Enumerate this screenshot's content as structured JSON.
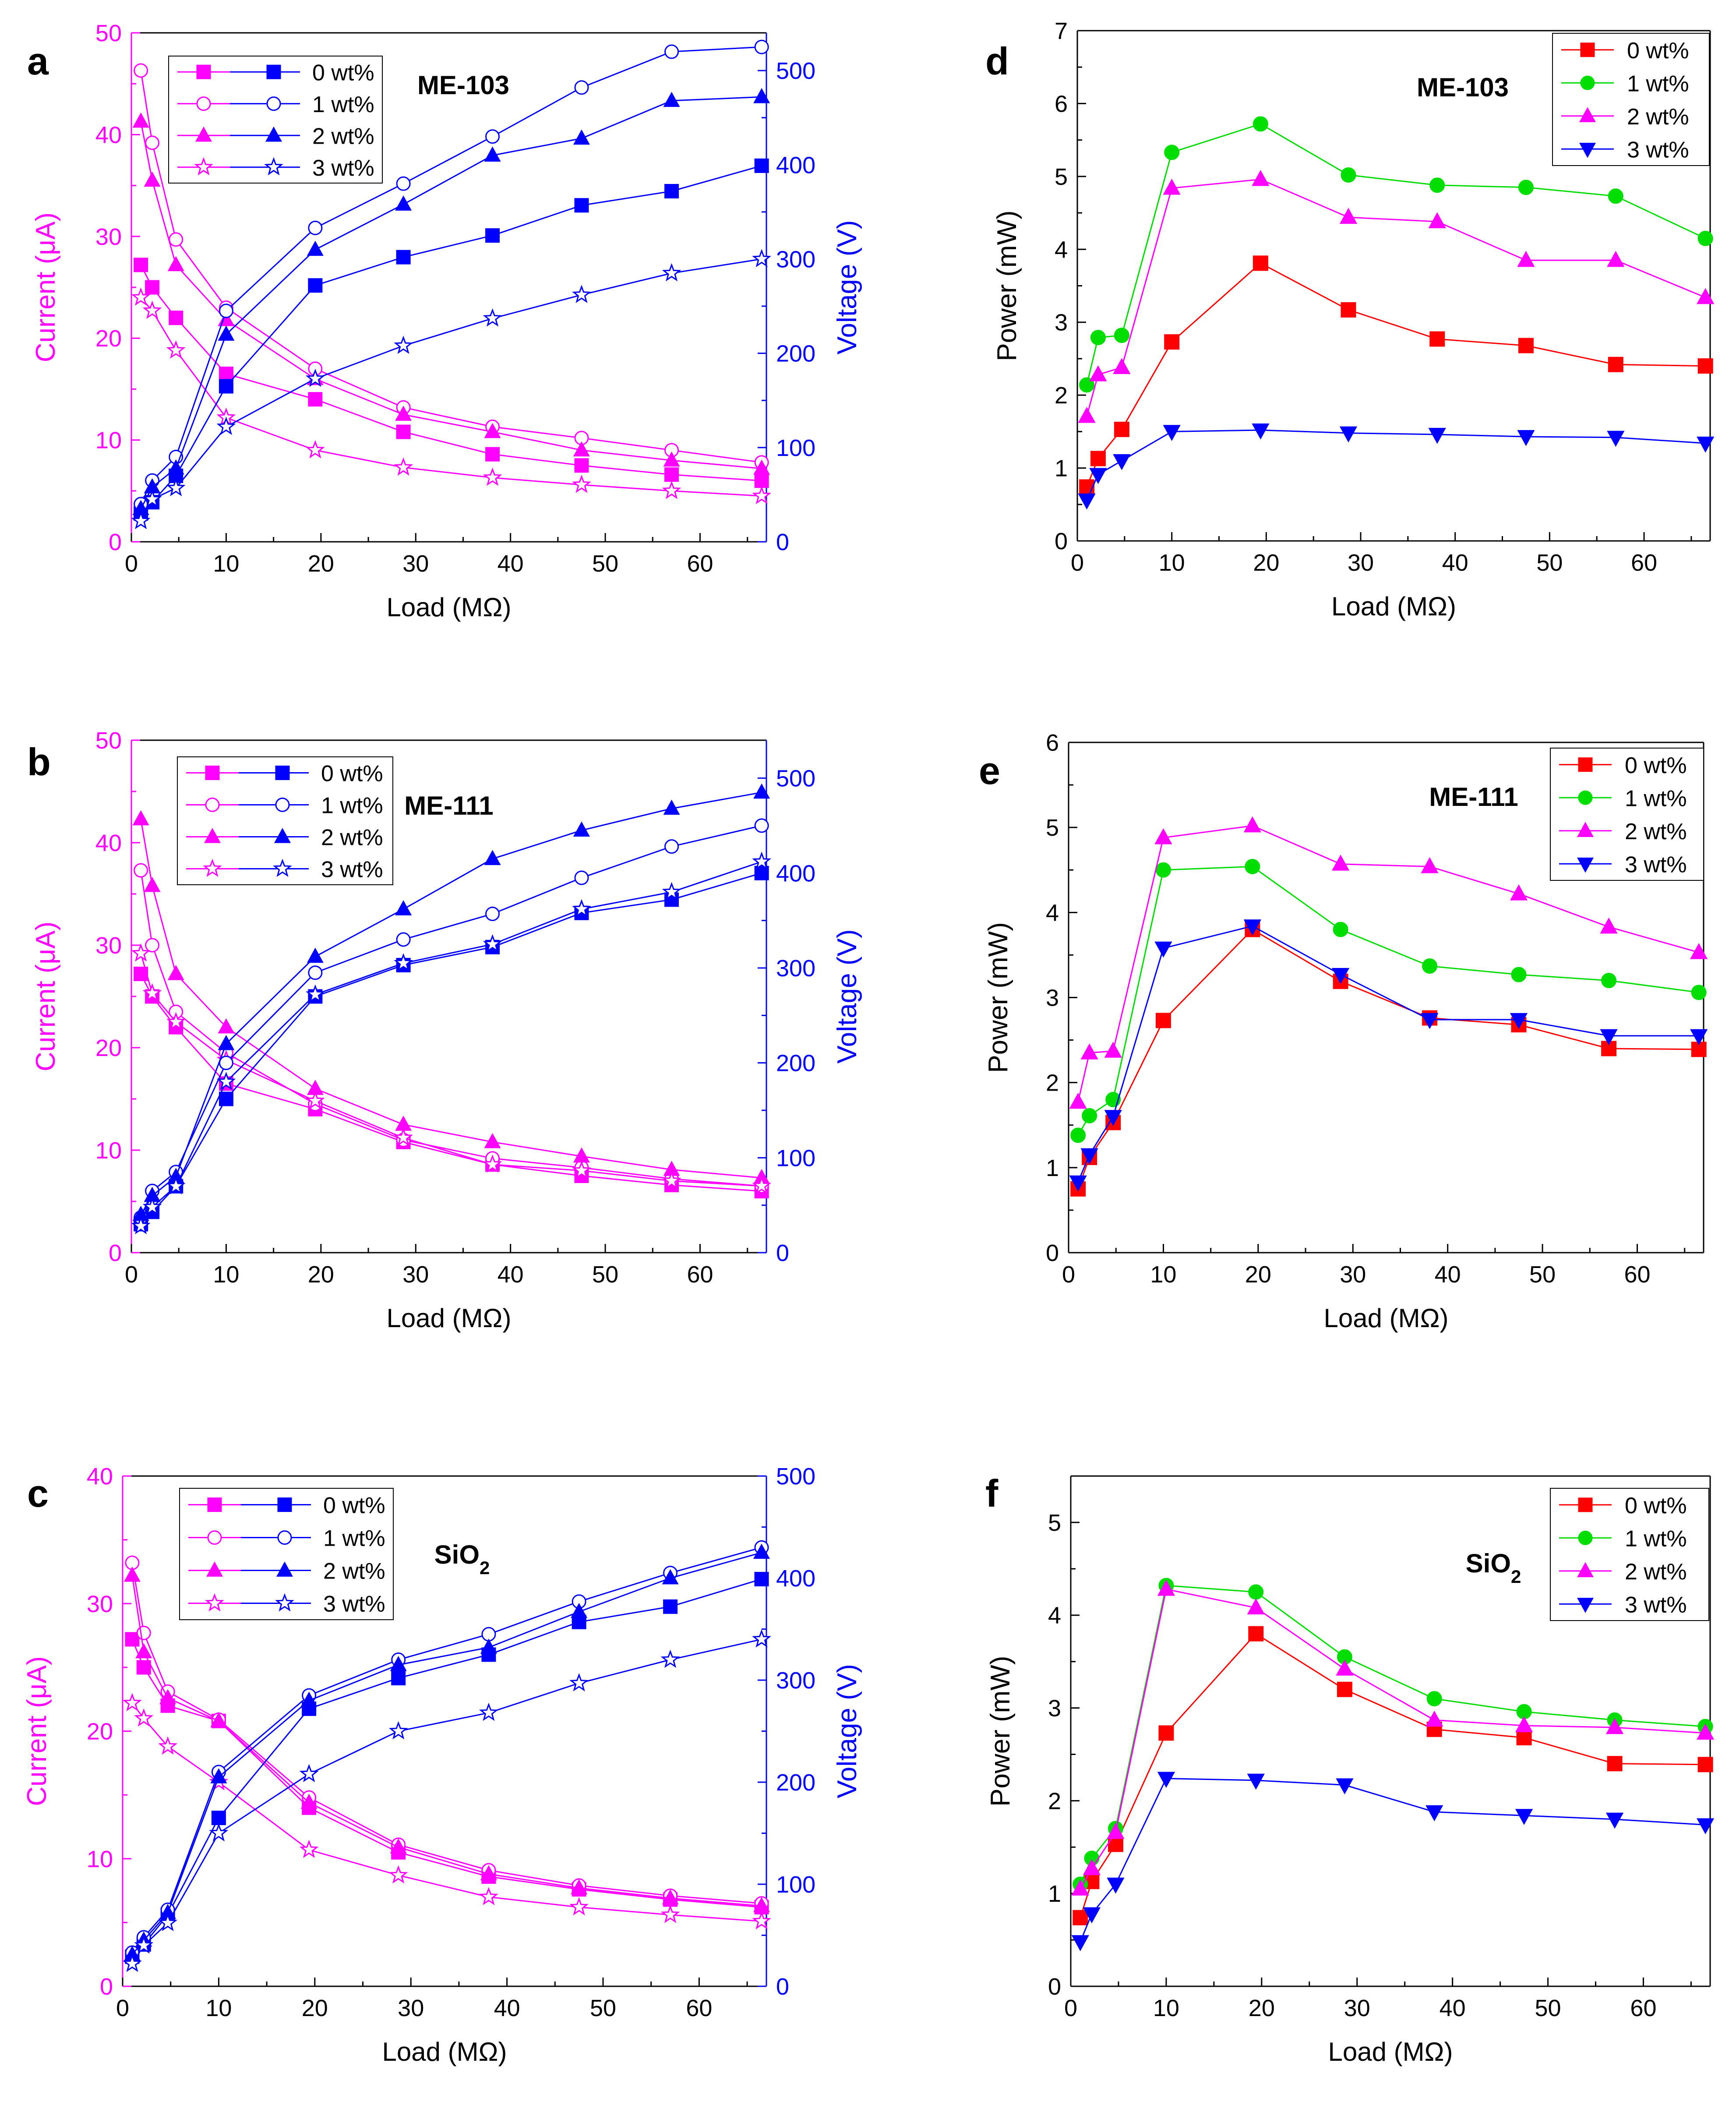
{
  "figure": {
    "x_label": "Load (MΩ)"
  },
  "colors": {
    "current": "#ff00ff",
    "voltage": "#0000ff",
    "power_0": "#ff0000",
    "power_1": "#00dd00",
    "power_2": "#ff00ff",
    "power_3": "#0000ff",
    "axis": "#000000"
  },
  "markers": [
    "square",
    "circle",
    "triangle",
    "star"
  ],
  "chart_data": [
    {
      "type": "line",
      "panel": "a",
      "title": "ME-103",
      "xlabel": "Load (MΩ)",
      "ylabel": "Current (μA)",
      "y2label": "Voltage (V)",
      "xlim": [
        0,
        67
      ],
      "ylim": [
        0,
        50
      ],
      "y2lim": [
        0,
        540
      ],
      "xticks": [
        0,
        10,
        20,
        30,
        40,
        50,
        60
      ],
      "yticks": [
        0,
        10,
        20,
        30,
        40,
        50
      ],
      "y2ticks": [
        0,
        100,
        200,
        300,
        400,
        500
      ],
      "x": [
        1,
        2.2,
        4.7,
        10,
        19.4,
        28.7,
        38.1,
        47.5,
        57,
        66.5
      ],
      "legend": [
        "0 wt%",
        "1 wt%",
        "2 wt%",
        "3 wt%"
      ],
      "series_current": [
        {
          "name": "0 wt%",
          "values": [
            27.2,
            25.0,
            22.0,
            16.5,
            14.0,
            10.8,
            8.6,
            7.5,
            6.6,
            6.0
          ]
        },
        {
          "name": "1 wt%",
          "values": [
            46.3,
            39.2,
            29.7,
            23.0,
            17.0,
            13.2,
            11.3,
            10.2,
            9.0,
            7.8
          ]
        },
        {
          "name": "2 wt%",
          "values": [
            41.3,
            35.5,
            27.2,
            21.8,
            16.0,
            12.5,
            10.8,
            9.0,
            8.0,
            7.2
          ]
        },
        {
          "name": "3 wt%",
          "values": [
            24.0,
            22.7,
            18.8,
            12.2,
            9.0,
            7.3,
            6.3,
            5.6,
            5.0,
            4.5
          ]
        }
      ],
      "series_voltage": [
        {
          "name": "0 wt%",
          "values": [
            30,
            42,
            70,
            165,
            272,
            302,
            325,
            357,
            372,
            399
          ]
        },
        {
          "name": "1 wt%",
          "values": [
            40,
            65,
            90,
            245,
            333,
            380,
            430,
            482,
            520,
            525
          ]
        },
        {
          "name": "2 wt%",
          "values": [
            35,
            58,
            78,
            220,
            310,
            358,
            410,
            428,
            468,
            472
          ]
        },
        {
          "name": "3 wt%",
          "values": [
            22,
            45,
            57,
            122,
            173,
            208,
            237,
            262,
            285,
            300
          ]
        }
      ]
    },
    {
      "type": "line",
      "panel": "b",
      "title": "ME-111",
      "xlabel": "Load (MΩ)",
      "ylabel": "Current (μA)",
      "y2label": "Voltage (V)",
      "xlim": [
        0,
        67
      ],
      "ylim": [
        0,
        50
      ],
      "y2lim": [
        0,
        540
      ],
      "xticks": [
        0,
        10,
        20,
        30,
        40,
        50,
        60
      ],
      "yticks": [
        0,
        10,
        20,
        30,
        40,
        50
      ],
      "y2ticks": [
        0,
        100,
        200,
        300,
        400,
        500
      ],
      "x": [
        1,
        2.2,
        4.7,
        10,
        19.4,
        28.7,
        38.1,
        47.5,
        57,
        66.5
      ],
      "legend": [
        "0 wt%",
        "1 wt%",
        "2 wt%",
        "3 wt%"
      ],
      "series_current": [
        {
          "name": "0 wt%",
          "values": [
            27.2,
            25.0,
            22.0,
            16.5,
            14.0,
            10.8,
            8.6,
            7.5,
            6.6,
            6.0
          ]
        },
        {
          "name": "1 wt%",
          "values": [
            37.3,
            30.0,
            23.5,
            19.5,
            14.5,
            11.0,
            9.2,
            8.3,
            7.2,
            6.5
          ]
        },
        {
          "name": "2 wt%",
          "values": [
            42.3,
            35.8,
            27.2,
            22.0,
            16.0,
            12.5,
            10.8,
            9.4,
            8.1,
            7.3
          ]
        },
        {
          "name": "3 wt%",
          "values": [
            29.2,
            25.3,
            22.5,
            18.8,
            14.8,
            11.2,
            8.6,
            8.0,
            7.0,
            6.5
          ]
        }
      ],
      "series_voltage": [
        {
          "name": "0 wt%",
          "values": [
            30,
            43,
            70,
            162,
            270,
            303,
            322,
            358,
            372,
            400
          ]
        },
        {
          "name": "1 wt%",
          "values": [
            37,
            65,
            85,
            200,
            295,
            330,
            357,
            395,
            428,
            450
          ]
        },
        {
          "name": "2 wt%",
          "values": [
            40,
            60,
            80,
            220,
            312,
            362,
            415,
            445,
            468,
            485
          ]
        },
        {
          "name": "3 wt%",
          "values": [
            28,
            48,
            70,
            180,
            272,
            305,
            325,
            362,
            380,
            412
          ]
        }
      ]
    },
    {
      "type": "line",
      "panel": "c",
      "title": "SiO2",
      "xlabel": "Load (MΩ)",
      "ylabel": "Current (μA)",
      "y2label": "Voltage (V)",
      "xlim": [
        0,
        67
      ],
      "ylim": [
        0,
        40
      ],
      "y2lim": [
        0,
        500
      ],
      "xticks": [
        0,
        10,
        20,
        30,
        40,
        50,
        60
      ],
      "yticks": [
        0,
        10,
        20,
        30,
        40
      ],
      "y2ticks": [
        0,
        100,
        200,
        300,
        400,
        500
      ],
      "x": [
        1,
        2.2,
        4.7,
        10,
        19.4,
        28.7,
        38.1,
        47.5,
        57,
        66.5
      ],
      "legend": [
        "0 wt%",
        "1 wt%",
        "2 wt%",
        "3 wt%"
      ],
      "series_current": [
        {
          "name": "0 wt%",
          "values": [
            27.2,
            25.0,
            22.0,
            20.8,
            14.0,
            10.5,
            8.6,
            7.6,
            6.8,
            6.2
          ]
        },
        {
          "name": "1 wt%",
          "values": [
            33.2,
            27.7,
            23.1,
            20.9,
            14.8,
            11.1,
            9.1,
            7.9,
            7.1,
            6.5
          ]
        },
        {
          "name": "2 wt%",
          "values": [
            32.2,
            26.2,
            22.6,
            20.8,
            14.4,
            10.9,
            8.8,
            7.7,
            6.9,
            6.3
          ]
        },
        {
          "name": "3 wt%",
          "values": [
            22.2,
            21.0,
            18.8,
            16.0,
            10.7,
            8.7,
            7.0,
            6.2,
            5.6,
            5.1
          ]
        }
      ],
      "series_voltage": [
        {
          "name": "0 wt%",
          "values": [
            29,
            41,
            70,
            165,
            272,
            302,
            325,
            357,
            372,
            399
          ]
        },
        {
          "name": "1 wt%",
          "values": [
            33,
            48,
            75,
            210,
            285,
            320,
            345,
            377,
            405,
            430
          ]
        },
        {
          "name": "2 wt%",
          "values": [
            31,
            45,
            72,
            205,
            280,
            315,
            332,
            367,
            400,
            425
          ]
        },
        {
          "name": "3 wt%",
          "values": [
            22,
            40,
            62,
            150,
            208,
            250,
            268,
            297,
            320,
            340
          ]
        }
      ]
    },
    {
      "type": "line",
      "panel": "d",
      "title": "ME-103",
      "xlabel": "Load (MΩ)",
      "ylabel": "Power (mW)",
      "xlim": [
        0,
        67
      ],
      "ylim": [
        0,
        7
      ],
      "xticks": [
        0,
        10,
        20,
        30,
        40,
        50,
        60
      ],
      "yticks": [
        0,
        1,
        2,
        3,
        4,
        5,
        6,
        7
      ],
      "x": [
        1,
        2.2,
        4.7,
        10,
        19.4,
        28.7,
        38.1,
        47.5,
        57,
        66.5
      ],
      "legend": [
        "0 wt%",
        "1 wt%",
        "2 wt%",
        "3 wt%"
      ],
      "series": [
        {
          "name": "0 wt%",
          "values": [
            0.74,
            1.13,
            1.53,
            2.73,
            3.81,
            3.17,
            2.77,
            2.68,
            2.42,
            2.4
          ]
        },
        {
          "name": "1 wt%",
          "values": [
            2.14,
            2.79,
            2.82,
            5.33,
            5.72,
            5.02,
            4.88,
            4.85,
            4.73,
            4.15
          ]
        },
        {
          "name": "2 wt%",
          "values": [
            1.71,
            2.28,
            2.38,
            4.84,
            4.96,
            4.44,
            4.38,
            3.85,
            3.85,
            3.34
          ]
        },
        {
          "name": "3 wt%",
          "values": [
            0.56,
            0.91,
            1.1,
            1.5,
            1.52,
            1.48,
            1.46,
            1.43,
            1.42,
            1.34
          ]
        }
      ]
    },
    {
      "type": "line",
      "panel": "e",
      "title": "ME-111",
      "xlabel": "Load (MΩ)",
      "ylabel": "Power (mW)",
      "xlim": [
        0,
        67
      ],
      "ylim": [
        0,
        6
      ],
      "xticks": [
        0,
        10,
        20,
        30,
        40,
        50,
        60
      ],
      "yticks": [
        0,
        1,
        2,
        3,
        4,
        5,
        6
      ],
      "x": [
        1,
        2.2,
        4.7,
        10,
        19.4,
        28.7,
        38.1,
        47.5,
        57,
        66.5
      ],
      "legend": [
        "0 wt%",
        "1 wt%",
        "2 wt%",
        "3 wt%"
      ],
      "series": [
        {
          "name": "0 wt%",
          "values": [
            0.75,
            1.12,
            1.53,
            2.73,
            3.8,
            3.19,
            2.76,
            2.68,
            2.4,
            2.39
          ]
        },
        {
          "name": "1 wt%",
          "values": [
            1.38,
            1.61,
            1.8,
            4.5,
            4.54,
            3.8,
            3.37,
            3.27,
            3.2,
            3.06
          ]
        },
        {
          "name": "2 wt%",
          "values": [
            1.77,
            2.35,
            2.37,
            4.88,
            5.02,
            4.57,
            4.54,
            4.22,
            3.83,
            3.53
          ]
        },
        {
          "name": "3 wt%",
          "values": [
            0.83,
            1.15,
            1.6,
            3.58,
            3.84,
            3.27,
            2.74,
            2.74,
            2.55,
            2.55
          ]
        }
      ]
    },
    {
      "type": "line",
      "panel": "f",
      "title": "SiO2",
      "xlabel": "Load (MΩ)",
      "ylabel": "Power (mW)",
      "xlim": [
        0,
        67
      ],
      "ylim": [
        0,
        5.5
      ],
      "xticks": [
        0,
        10,
        20,
        30,
        40,
        50,
        60
      ],
      "yticks": [
        0,
        1,
        2,
        3,
        4,
        5
      ],
      "x": [
        1,
        2.2,
        4.7,
        10,
        19.4,
        28.7,
        38.1,
        47.5,
        57,
        66.5
      ],
      "legend": [
        "0 wt%",
        "1 wt%",
        "2 wt%",
        "3 wt%"
      ],
      "series": [
        {
          "name": "0 wt%",
          "values": [
            0.74,
            1.13,
            1.53,
            2.73,
            3.8,
            3.2,
            2.77,
            2.68,
            2.4,
            2.39
          ]
        },
        {
          "name": "1 wt%",
          "values": [
            1.1,
            1.38,
            1.7,
            4.32,
            4.25,
            3.55,
            3.1,
            2.96,
            2.87,
            2.8
          ]
        },
        {
          "name": "2 wt%",
          "values": [
            1.05,
            1.27,
            1.66,
            4.28,
            4.08,
            3.42,
            2.87,
            2.81,
            2.79,
            2.73
          ]
        },
        {
          "name": "3 wt%",
          "values": [
            0.48,
            0.78,
            1.1,
            2.24,
            2.22,
            2.17,
            1.88,
            1.84,
            1.8,
            1.74
          ]
        }
      ]
    }
  ]
}
